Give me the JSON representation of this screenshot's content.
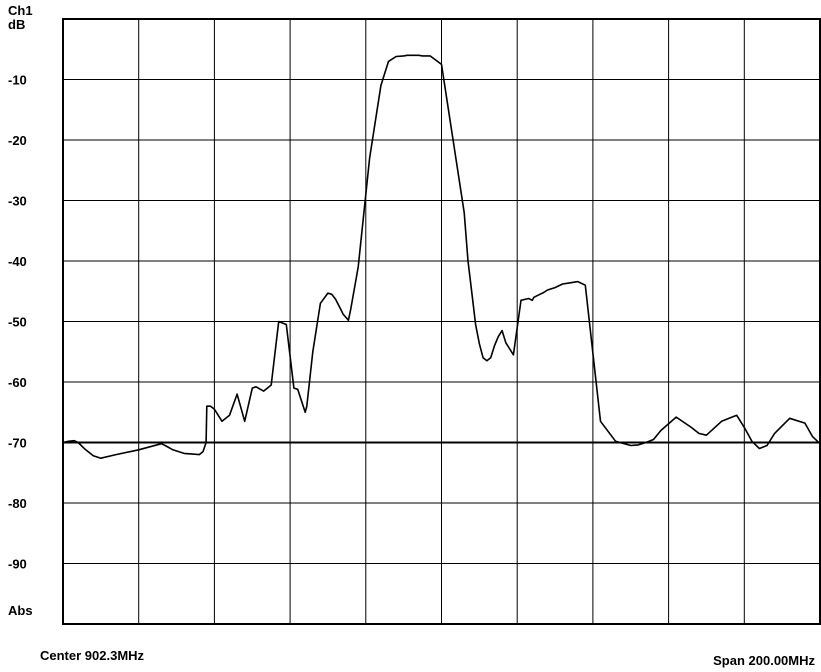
{
  "chart_data": {
    "type": "line",
    "channel_label": "Ch1",
    "unit_label": "dB",
    "reference_label": "Abs",
    "center_label": "Center 902.3MHz",
    "span_label": "Span 200.00MHz",
    "ylim": [
      -100,
      0
    ],
    "yticks": [
      {
        "value": -10,
        "label": "-10"
      },
      {
        "value": -20,
        "label": "-20"
      },
      {
        "value": -30,
        "label": "-30"
      },
      {
        "value": -40,
        "label": "-40"
      },
      {
        "value": -50,
        "label": "-50"
      },
      {
        "value": -60,
        "label": "-60"
      },
      {
        "value": -70,
        "label": "-70"
      },
      {
        "value": -80,
        "label": "-80"
      },
      {
        "value": -90,
        "label": "-90"
      }
    ],
    "xlim": [
      0,
      10
    ],
    "grid": true,
    "reference_line": {
      "value": -70
    },
    "series": [
      {
        "x": [
          0,
          0.07,
          0.15,
          0.2,
          0.3,
          0.4,
          0.5,
          0.7,
          1.0,
          1.3,
          1.35,
          1.45,
          1.6,
          1.8,
          1.85,
          1.89,
          1.9,
          1.95,
          2.0,
          2.1,
          2.2,
          2.3,
          2.4,
          2.5,
          2.55,
          2.65,
          2.75,
          2.85,
          2.95,
          3.05,
          3.1,
          3.2,
          3.22,
          3.3,
          3.4,
          3.5,
          3.55,
          3.6,
          3.67,
          3.7,
          3.75,
          3.77,
          3.8,
          3.9,
          4.05,
          4.2,
          4.3,
          4.4,
          4.5,
          4.55,
          4.6,
          4.65,
          4.7,
          4.75,
          4.85,
          5.0,
          5.3,
          5.35,
          5.4,
          5.45,
          5.5,
          5.55,
          5.6,
          5.65,
          5.7,
          5.75,
          5.8,
          5.85,
          5.95,
          6.05,
          6.15,
          6.2,
          6.22,
          6.3,
          6.35,
          6.4,
          6.5,
          6.6,
          6.7,
          6.8,
          6.9,
          7.1,
          7.3,
          7.5,
          7.6,
          7.7,
          7.8,
          7.9,
          8.1,
          8.3,
          8.4,
          8.5,
          8.7,
          8.9,
          9.0,
          9.1,
          9.2,
          9.3,
          9.4,
          9.6,
          9.8,
          9.9,
          10.0
        ],
        "y": [
          -70,
          -69.8,
          -69.7,
          -70,
          -71.2,
          -72.2,
          -72.6,
          -72,
          -71.2,
          -70.2,
          -70.5,
          -71.2,
          -71.8,
          -72,
          -71.5,
          -70,
          -64,
          -64,
          -64.5,
          -66.5,
          -65.5,
          -62,
          -66.5,
          -61,
          -60.8,
          -61.5,
          -60.5,
          -50,
          -50.5,
          -61,
          -61.2,
          -65,
          -64,
          -55,
          -47,
          -45.3,
          -45.5,
          -46.3,
          -48,
          -48.8,
          -49.5,
          -49.8,
          -48,
          -41,
          -23,
          -11,
          -7,
          -6.2,
          -6.1,
          -6,
          -6,
          -6,
          -6,
          -6.1,
          -6.1,
          -7.5,
          -32,
          -40,
          -45.2,
          -50.5,
          -53.7,
          -56,
          -56.5,
          -56,
          -54,
          -52.5,
          -51.5,
          -53.5,
          -55.5,
          -46.5,
          -46.2,
          -46.5,
          -46,
          -45.5,
          -45.2,
          -44.8,
          -44.4,
          -43.8,
          -43.6,
          -43.4,
          -44,
          -66.5,
          -69.8,
          -70.5,
          -70.4,
          -70,
          -69.5,
          -68,
          -65.8,
          -67.5,
          -68.5,
          -68.8,
          -66.5,
          -65.5,
          -67.5,
          -69.8,
          -71,
          -70.5,
          -68.5,
          -66,
          -66.8,
          -69,
          -70.2
        ]
      }
    ]
  }
}
